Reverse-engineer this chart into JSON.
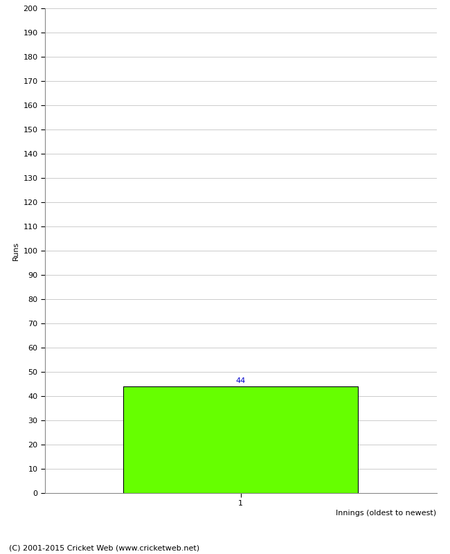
{
  "bar_values": [
    44
  ],
  "bar_positions": [
    1
  ],
  "bar_color": "#66ff00",
  "bar_edge_color": "#000000",
  "bar_width": 0.6,
  "xlabel": "Innings (oldest to newest)",
  "ylabel": "Runs",
  "ylim": [
    0,
    200
  ],
  "ytick_step": 10,
  "xlim": [
    0.5,
    1.5
  ],
  "xtick_labels": [
    "1"
  ],
  "value_label_color": "#0000cc",
  "value_label_fontsize": 8,
  "footer_text": "(C) 2001-2015 Cricket Web (www.cricketweb.net)",
  "xlabel_fontsize": 8,
  "ylabel_fontsize": 8,
  "footer_fontsize": 8,
  "tick_fontsize": 8,
  "background_color": "#ffffff",
  "grid_color": "#cccccc",
  "grid_linewidth": 0.7
}
